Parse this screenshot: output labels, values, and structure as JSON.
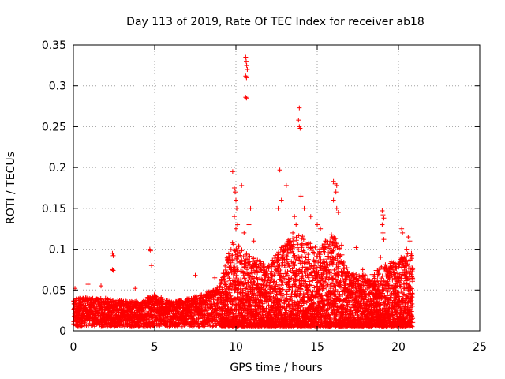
{
  "chart_data": {
    "type": "scatter",
    "title": "Day 113 of 2019, Rate Of TEC Index for receiver ab18",
    "xlabel": "GPS time / hours",
    "ylabel": "ROTI / TECUs",
    "xlim": [
      0,
      25
    ],
    "ylim": [
      0,
      0.35
    ],
    "xticks": [
      "0",
      "5",
      "10",
      "15",
      "20",
      "25"
    ],
    "yticks": [
      "0",
      "0.05",
      "0.1",
      "0.15",
      "0.2",
      "0.25",
      "0.3",
      "0.35"
    ],
    "grid": true,
    "marker": "plus",
    "color": "#ff0000",
    "density_profile": [
      {
        "x": 0.0,
        "hi": 0.04
      },
      {
        "x": 1.0,
        "hi": 0.042
      },
      {
        "x": 2.0,
        "hi": 0.04
      },
      {
        "x": 3.0,
        "hi": 0.038
      },
      {
        "x": 4.0,
        "hi": 0.036
      },
      {
        "x": 5.0,
        "hi": 0.045
      },
      {
        "x": 6.0,
        "hi": 0.035
      },
      {
        "x": 7.0,
        "hi": 0.04
      },
      {
        "x": 8.0,
        "hi": 0.045
      },
      {
        "x": 9.0,
        "hi": 0.055
      },
      {
        "x": 9.7,
        "hi": 0.11
      },
      {
        "x": 10.5,
        "hi": 0.1
      },
      {
        "x": 11.0,
        "hi": 0.09
      },
      {
        "x": 12.0,
        "hi": 0.08
      },
      {
        "x": 13.0,
        "hi": 0.11
      },
      {
        "x": 14.0,
        "hi": 0.12
      },
      {
        "x": 15.0,
        "hi": 0.1
      },
      {
        "x": 16.0,
        "hi": 0.12
      },
      {
        "x": 17.0,
        "hi": 0.07
      },
      {
        "x": 18.0,
        "hi": 0.07
      },
      {
        "x": 19.0,
        "hi": 0.08
      },
      {
        "x": 20.0,
        "hi": 0.09
      },
      {
        "x": 20.9,
        "hi": 0.1
      }
    ],
    "points": [
      [
        0.1,
        0.052
      ],
      [
        0.9,
        0.057
      ],
      [
        1.7,
        0.055
      ],
      [
        2.4,
        0.095
      ],
      [
        2.45,
        0.092
      ],
      [
        2.4,
        0.075
      ],
      [
        2.45,
        0.074
      ],
      [
        4.7,
        0.1
      ],
      [
        4.75,
        0.098
      ],
      [
        4.8,
        0.08
      ],
      [
        3.8,
        0.052
      ],
      [
        7.5,
        0.068
      ],
      [
        8.7,
        0.065
      ],
      [
        9.8,
        0.195
      ],
      [
        9.9,
        0.175
      ],
      [
        9.95,
        0.17
      ],
      [
        10.0,
        0.16
      ],
      [
        10.05,
        0.15
      ],
      [
        10.1,
        0.13
      ],
      [
        10.35,
        0.178
      ],
      [
        9.9,
        0.14
      ],
      [
        10.0,
        0.125
      ],
      [
        10.6,
        0.335
      ],
      [
        10.63,
        0.33
      ],
      [
        10.66,
        0.325
      ],
      [
        10.7,
        0.32
      ],
      [
        10.6,
        0.312
      ],
      [
        10.65,
        0.31
      ],
      [
        10.6,
        0.286
      ],
      [
        10.65,
        0.285
      ],
      [
        10.5,
        0.12
      ],
      [
        10.8,
        0.13
      ],
      [
        10.9,
        0.15
      ],
      [
        11.1,
        0.11
      ],
      [
        12.7,
        0.197
      ],
      [
        12.6,
        0.15
      ],
      [
        12.8,
        0.16
      ],
      [
        13.1,
        0.178
      ],
      [
        13.5,
        0.12
      ],
      [
        13.6,
        0.14
      ],
      [
        13.7,
        0.13
      ],
      [
        13.9,
        0.273
      ],
      [
        13.85,
        0.258
      ],
      [
        13.9,
        0.25
      ],
      [
        13.95,
        0.248
      ],
      [
        14.0,
        0.165
      ],
      [
        14.2,
        0.15
      ],
      [
        14.6,
        0.14
      ],
      [
        15.0,
        0.13
      ],
      [
        15.2,
        0.125
      ],
      [
        15.5,
        0.11
      ],
      [
        16.0,
        0.183
      ],
      [
        16.1,
        0.18
      ],
      [
        16.2,
        0.178
      ],
      [
        16.15,
        0.17
      ],
      [
        16.0,
        0.16
      ],
      [
        16.2,
        0.15
      ],
      [
        16.3,
        0.145
      ],
      [
        16.5,
        0.105
      ],
      [
        17.4,
        0.102
      ],
      [
        17.8,
        0.075
      ],
      [
        19.0,
        0.147
      ],
      [
        19.05,
        0.142
      ],
      [
        19.1,
        0.138
      ],
      [
        19.0,
        0.13
      ],
      [
        19.05,
        0.12
      ],
      [
        19.1,
        0.112
      ],
      [
        18.9,
        0.09
      ],
      [
        20.2,
        0.125
      ],
      [
        20.25,
        0.12
      ],
      [
        20.6,
        0.115
      ],
      [
        20.7,
        0.11
      ],
      [
        20.5,
        0.1
      ],
      [
        20.8,
        0.095
      ],
      [
        20.4,
        0.085
      ]
    ]
  }
}
